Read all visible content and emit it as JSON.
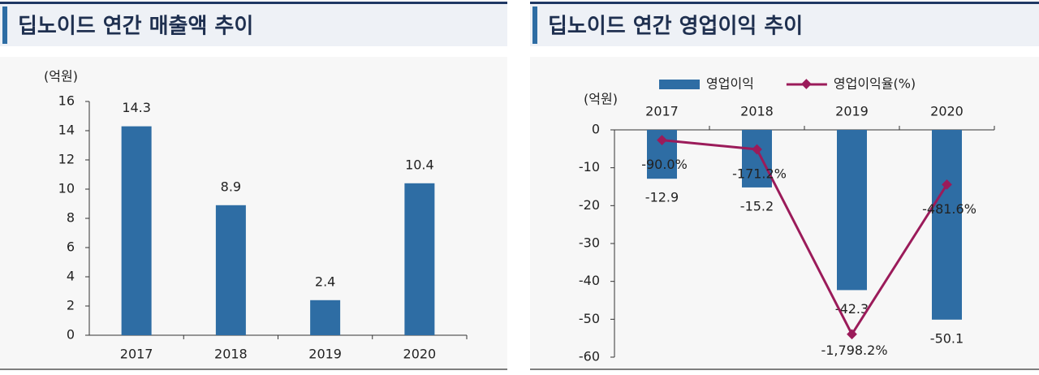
{
  "chart_data": [
    {
      "type": "bar",
      "title": "딥노이드 연간 매출액 추이",
      "unit": "(억원)",
      "categories": [
        "2017",
        "2018",
        "2019",
        "2020"
      ],
      "values": [
        14.3,
        8.9,
        2.4,
        10.4
      ],
      "color": "#2e6da4",
      "ylim": [
        0,
        16
      ],
      "yticks": [
        0,
        2,
        4,
        6,
        8,
        10,
        12,
        14,
        16
      ],
      "xaxis_position": "bottom"
    },
    {
      "type": "bar_line",
      "title": "딥노이드 연간 영업이익 추이",
      "unit": "(억원)",
      "categories": [
        "2017",
        "2018",
        "2019",
        "2020"
      ],
      "series": [
        {
          "name": "영업이익",
          "type": "bar",
          "color": "#2e6da4",
          "values": [
            -12.9,
            -15.2,
            -42.3,
            -50.1
          ]
        },
        {
          "name": "영업이익율(%)",
          "type": "line",
          "axis": "y2",
          "color": "#9b1b5a",
          "values": [
            -90.0,
            -171.2,
            -1798.2,
            -481.6
          ],
          "value_labels": [
            "-90.0%",
            "-171.2%",
            "-1,798.2%",
            "-481.6%"
          ]
        }
      ],
      "ylim": [
        -60,
        0
      ],
      "yticks": [
        0,
        -10,
        -20,
        -30,
        -40,
        -50,
        -60
      ],
      "y2lim": [
        -2000,
        0
      ],
      "xaxis_position": "top"
    }
  ]
}
